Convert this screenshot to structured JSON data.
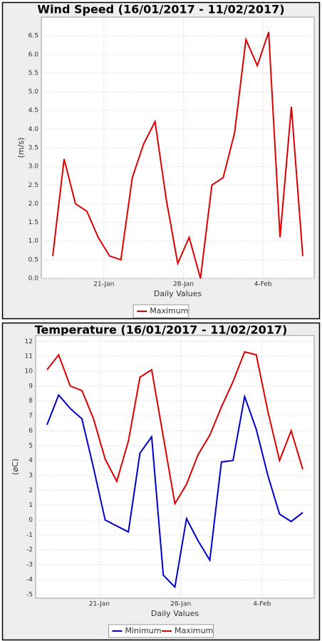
{
  "chart_data": [
    {
      "type": "line",
      "title": "Wind Speed (16/01/2017 - 11/02/2017)",
      "ylabel": "(m/s)",
      "xlabel": "Daily Values",
      "categories": [
        null,
        null,
        null,
        null,
        null,
        "21-Jan",
        null,
        null,
        null,
        null,
        null,
        null,
        "28-Jan",
        null,
        null,
        null,
        null,
        null,
        null,
        "4-Feb",
        null,
        null,
        null
      ],
      "series": [
        {
          "name": "Maximum",
          "color": "#dd0000",
          "values": [
            0.6,
            3.2,
            2.0,
            1.8,
            1.1,
            0.6,
            0.5,
            2.7,
            3.6,
            4.2,
            2.1,
            0.4,
            1.1,
            0.0,
            2.5,
            2.7,
            3.9,
            6.4,
            5.7,
            6.6,
            1.1,
            4.6,
            0.6
          ]
        }
      ],
      "ylim": [
        0,
        7.0
      ],
      "yticks": [
        {
          "value": 0,
          "label": "0.0"
        },
        {
          "value": 0.5,
          "label": "0.5"
        },
        {
          "value": 1,
          "label": "1.0"
        },
        {
          "value": 1.5,
          "label": "1.5"
        },
        {
          "value": 2,
          "label": "2.0"
        },
        {
          "value": 2.5,
          "label": "2.5"
        },
        {
          "value": 3,
          "label": "3.0"
        },
        {
          "value": 3.5,
          "label": "3.5"
        },
        {
          "value": 4,
          "label": "4.0"
        },
        {
          "value": 4.5,
          "label": "4.5"
        },
        {
          "value": 5,
          "label": "5.0"
        },
        {
          "value": 5.5,
          "label": "5.5"
        },
        {
          "value": 6,
          "label": "6.0"
        },
        {
          "value": 6.5,
          "label": "6.5"
        }
      ],
      "grid": true
    },
    {
      "type": "line",
      "title": "Temperature (16/01/2017 - 11/02/2017)",
      "ylabel": "(øC)",
      "xlabel": "Daily Values",
      "categories": [
        null,
        null,
        null,
        null,
        null,
        "21-Jan",
        null,
        null,
        null,
        null,
        null,
        null,
        "28-Jan",
        null,
        null,
        null,
        null,
        null,
        null,
        "4-Feb",
        null,
        null,
        null
      ],
      "series": [
        {
          "name": "Minimum",
          "color": "#0000cc",
          "values": [
            6.4,
            8.4,
            7.5,
            6.8,
            3.5,
            0.0,
            -0.4,
            -0.8,
            4.5,
            5.6,
            -3.7,
            -4.5,
            0.1,
            -1.4,
            -2.7,
            3.9,
            4.0,
            8.3,
            6.1,
            3.0,
            0.4,
            -0.1,
            0.5
          ]
        },
        {
          "name": "Maximum",
          "color": "#dd0000",
          "values": [
            10.1,
            11.1,
            9.0,
            8.7,
            6.8,
            4.1,
            2.6,
            5.3,
            9.6,
            10.1,
            5.6,
            1.1,
            2.4,
            4.4,
            5.7,
            7.6,
            9.3,
            11.3,
            11.1,
            7.3,
            4.0,
            6.0,
            3.4
          ]
        }
      ],
      "ylim": [
        -5.25,
        12.4
      ],
      "yticks": [
        -5,
        -4,
        -3,
        -2,
        -1,
        0,
        1,
        2,
        3,
        4,
        5,
        6,
        7,
        8,
        9,
        10,
        11,
        12
      ],
      "grid": true
    }
  ]
}
